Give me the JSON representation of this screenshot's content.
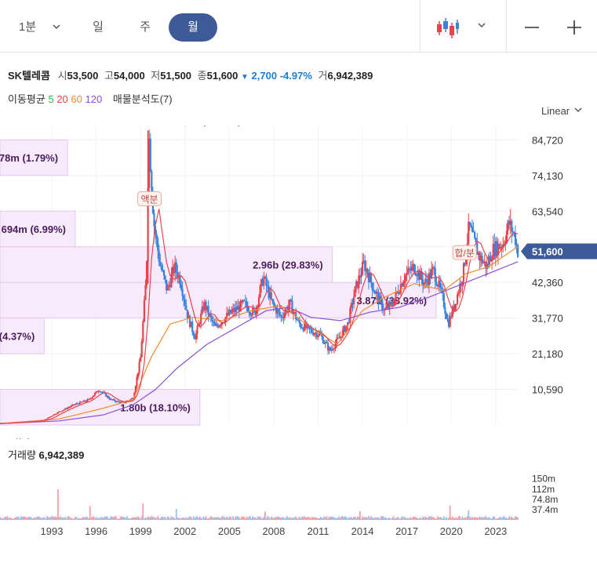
{
  "toolbar": {
    "period_minute": "1분",
    "tab_day": "일",
    "tab_week": "주",
    "tab_month": "월"
  },
  "quote": {
    "name": "SK텔레콤",
    "open_label": "시",
    "open": "53,500",
    "high_label": "고",
    "high": "54,000",
    "low_label": "저",
    "low": "51,500",
    "close_label": "종",
    "close": "51,600",
    "change": "2,700",
    "change_pct": "-4.97%",
    "volume_label": "거",
    "volume": "6,942,389"
  },
  "moving_avg": {
    "label": "이동평균",
    "periods": [
      "5",
      "20",
      "60",
      "120"
    ],
    "colors": [
      "#3bb14a",
      "#e8434d",
      "#f08c2c",
      "#8a4fd8"
    ],
    "volume_profile": "매물분석도(7)"
  },
  "scale_mode": "Linear",
  "colors": {
    "up": "#e8434d",
    "down": "#3b82e0",
    "accent": "#3d5a99",
    "profile_fill": "#f7ebfb",
    "profile_stroke": "#e3c6ef"
  },
  "chart_data": {
    "type": "candlestick",
    "x_ticks": [
      "1993",
      "1996",
      "1999",
      "2002",
      "2005",
      "2008",
      "2011",
      "2014",
      "2017",
      "2020",
      "2023"
    ],
    "y_ticks": [
      "84,720",
      "74,130",
      "63,540",
      "52,950",
      "42,360",
      "31,770",
      "21,180",
      "10,590"
    ],
    "ylim": [
      0,
      89000
    ],
    "current_price_label": "51,600",
    "high_label": "최고 87,475 (-41.01%)",
    "low_label": "최저 397 (12897.48%)",
    "high": {
      "year": 2000.0,
      "price": 87475
    },
    "low": {
      "year": 1990.3,
      "price": 397
    },
    "events": [
      {
        "label": "액분",
        "year": 2000.1,
        "price": 67000
      },
      {
        "label": "합/분",
        "year": 2021.4,
        "price": 51000
      }
    ],
    "price_path": [
      [
        1990.0,
        500
      ],
      [
        1992.0,
        1000
      ],
      [
        1993.0,
        1500
      ],
      [
        1993.8,
        3500
      ],
      [
        1995.0,
        6000
      ],
      [
        1996.0,
        7500
      ],
      [
        1996.7,
        10500
      ],
      [
        1997.5,
        7500
      ],
      [
        1998.3,
        6500
      ],
      [
        1999.0,
        8000
      ],
      [
        1999.5,
        20000
      ],
      [
        1999.9,
        45000
      ],
      [
        2000.05,
        87475
      ],
      [
        2000.4,
        60000
      ],
      [
        2000.8,
        48000
      ],
      [
        2001.3,
        40000
      ],
      [
        2001.8,
        47000
      ],
      [
        2002.2,
        43000
      ],
      [
        2002.7,
        32000
      ],
      [
        2003.2,
        26000
      ],
      [
        2003.8,
        36000
      ],
      [
        2004.5,
        29000
      ],
      [
        2005.5,
        33000
      ],
      [
        2006.5,
        36000
      ],
      [
        2007.2,
        33000
      ],
      [
        2007.8,
        44000
      ],
      [
        2008.4,
        36000
      ],
      [
        2009.0,
        32000
      ],
      [
        2009.6,
        36000
      ],
      [
        2010.2,
        30000
      ],
      [
        2011.0,
        28000
      ],
      [
        2011.6,
        27000
      ],
      [
        2012.3,
        22000
      ],
      [
        2012.8,
        25000
      ],
      [
        2013.5,
        30000
      ],
      [
        2014.0,
        40000
      ],
      [
        2014.6,
        48000
      ],
      [
        2015.3,
        40000
      ],
      [
        2016.0,
        34000
      ],
      [
        2016.5,
        36000
      ],
      [
        2017.3,
        44000
      ],
      [
        2018.0,
        47000
      ],
      [
        2018.7,
        42000
      ],
      [
        2019.3,
        46000
      ],
      [
        2019.9,
        38000
      ],
      [
        2020.3,
        30000
      ],
      [
        2020.8,
        37000
      ],
      [
        2021.3,
        45000
      ],
      [
        2021.7,
        59000
      ],
      [
        2022.0,
        55000
      ],
      [
        2022.4,
        50000
      ],
      [
        2022.9,
        47000
      ],
      [
        2023.3,
        52000
      ],
      [
        2024.0,
        54000
      ],
      [
        2024.4,
        60000
      ],
      [
        2024.8,
        56000
      ],
      [
        2025.0,
        51600
      ]
    ],
    "ma120_path": [
      [
        1990.0,
        400
      ],
      [
        1994.0,
        1200
      ],
      [
        1997.0,
        3000
      ],
      [
        1999.0,
        6000
      ],
      [
        2000.5,
        10500
      ],
      [
        2002.0,
        17000
      ],
      [
        2004.0,
        24000
      ],
      [
        2006.0,
        29000
      ],
      [
        2008.0,
        34000
      ],
      [
        2009.5,
        35000
      ],
      [
        2011.0,
        32000
      ],
      [
        2013.0,
        31000
      ],
      [
        2015.0,
        33500
      ],
      [
        2017.0,
        35000
      ],
      [
        2019.0,
        38000
      ],
      [
        2021.0,
        41500
      ],
      [
        2023.0,
        45000
      ],
      [
        2025.0,
        48500
      ]
    ],
    "ma60_path": [
      [
        1990.0,
        450
      ],
      [
        1994.0,
        1800
      ],
      [
        1997.0,
        5000
      ],
      [
        1999.0,
        7500
      ],
      [
        2000.2,
        20000
      ],
      [
        2001.5,
        30000
      ],
      [
        2003.0,
        32000
      ],
      [
        2005.0,
        31000
      ],
      [
        2007.0,
        34000
      ],
      [
        2009.0,
        35500
      ],
      [
        2011.0,
        29000
      ],
      [
        2012.8,
        24000
      ],
      [
        2014.5,
        34000
      ],
      [
        2016.0,
        38000
      ],
      [
        2018.0,
        42000
      ],
      [
        2020.0,
        40000
      ],
      [
        2021.5,
        45000
      ],
      [
        2023.0,
        47000
      ],
      [
        2025.0,
        53000
      ]
    ],
    "volume_ticks": [
      "150m",
      "112m",
      "74.8m",
      "37.4m"
    ],
    "volume_max": 160,
    "volume_label": "거래량",
    "volume_value": "6,942,389",
    "volume_bars": [
      {
        "year": 1993.9,
        "value": 112,
        "up": true
      },
      {
        "year": 1996.1,
        "value": 50,
        "up": true
      },
      {
        "year": 1999.7,
        "value": 60,
        "up": true
      },
      {
        "year": 2001.9,
        "value": 40,
        "up": false
      },
      {
        "year": 2007.9,
        "value": 30,
        "up": true
      },
      {
        "year": 2014.3,
        "value": 32,
        "up": true
      },
      {
        "year": 2020.4,
        "value": 52,
        "up": true
      },
      {
        "year": 2021.7,
        "value": 35,
        "up": false
      }
    ],
    "volume_profile": [
      {
        "label": "178m (1.79%)",
        "from": 74130,
        "to": 84720,
        "width_frac": 0.13
      },
      {
        "label": "694m (6.99%)",
        "from": 52950,
        "to": 63540,
        "width_frac": 0.145
      },
      {
        "label": "2.96b (29.83%)",
        "from": 42360,
        "to": 52950,
        "width_frac": 0.64
      },
      {
        "label": "3.87b (38.92%)",
        "from": 31770,
        "to": 42360,
        "width_frac": 0.84
      },
      {
        "label": "434m (4.37%)",
        "from": 21180,
        "to": 31770,
        "width_frac": 0.085
      },
      {
        "label": "1.80b (18.10%)",
        "from": 0,
        "to": 10590,
        "width_frac": 0.385
      }
    ]
  }
}
